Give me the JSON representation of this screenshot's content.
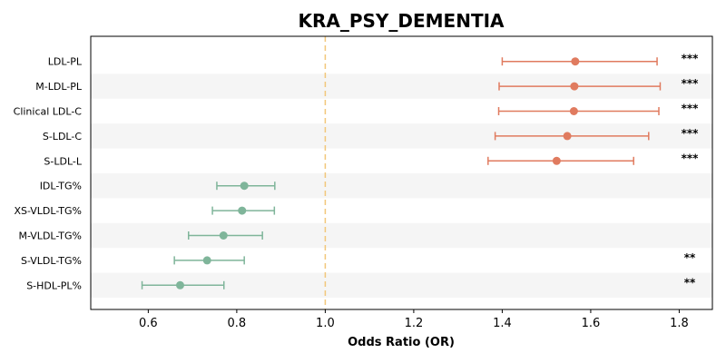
{
  "chart_data": {
    "type": "forest",
    "title": "KRA_PSY_DEMENTIA",
    "xlabel": "Odds Ratio (OR)",
    "xlim": [
      0.47,
      1.875
    ],
    "xticks": [
      "0.6",
      "0.8",
      "1.0",
      "1.2",
      "1.4",
      "1.6",
      "1.8"
    ],
    "reference_line": 1.0,
    "colors": {
      "positive": "#e07b5f",
      "negative": "#7fb59a",
      "reference": "#f2c77a",
      "band": "#f5f5f5"
    },
    "rows": [
      {
        "label": "LDL-PL",
        "or": 1.565,
        "ci_low": 1.4,
        "ci_high": 1.75,
        "sig": "***",
        "direction": "positive"
      },
      {
        "label": "M-LDL-PL",
        "or": 1.563,
        "ci_low": 1.393,
        "ci_high": 1.757,
        "sig": "***",
        "direction": "positive"
      },
      {
        "label": "Clinical LDL-C",
        "or": 1.562,
        "ci_low": 1.392,
        "ci_high": 1.754,
        "sig": "***",
        "direction": "positive"
      },
      {
        "label": "S-LDL-C",
        "or": 1.547,
        "ci_low": 1.384,
        "ci_high": 1.731,
        "sig": "***",
        "direction": "positive"
      },
      {
        "label": "S-LDL-L",
        "or": 1.523,
        "ci_low": 1.368,
        "ci_high": 1.697,
        "sig": "***",
        "direction": "positive"
      },
      {
        "label": "IDL-TG%",
        "or": 0.817,
        "ci_low": 0.755,
        "ci_high": 0.886,
        "sig": "",
        "direction": "negative"
      },
      {
        "label": "XS-VLDL-TG%",
        "or": 0.812,
        "ci_low": 0.745,
        "ci_high": 0.885,
        "sig": "",
        "direction": "negative"
      },
      {
        "label": "M-VLDL-TG%",
        "or": 0.77,
        "ci_low": 0.691,
        "ci_high": 0.858,
        "sig": "",
        "direction": "negative"
      },
      {
        "label": "S-VLDL-TG%",
        "or": 0.733,
        "ci_low": 0.659,
        "ci_high": 0.817,
        "sig": "**",
        "direction": "negative"
      },
      {
        "label": "S-HDL-PL%",
        "or": 0.672,
        "ci_low": 0.586,
        "ci_high": 0.771,
        "sig": "**",
        "direction": "negative"
      }
    ]
  }
}
